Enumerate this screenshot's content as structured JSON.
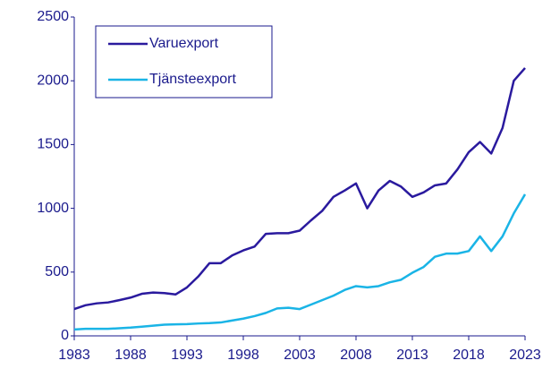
{
  "chart_data": {
    "type": "line",
    "x": [
      1983,
      1984,
      1985,
      1986,
      1987,
      1988,
      1989,
      1990,
      1991,
      1992,
      1993,
      1994,
      1995,
      1996,
      1997,
      1998,
      1999,
      2000,
      2001,
      2002,
      2003,
      2004,
      2005,
      2006,
      2007,
      2008,
      2009,
      2010,
      2011,
      2012,
      2013,
      2014,
      2015,
      2016,
      2017,
      2018,
      2019,
      2020,
      2021,
      2022,
      2023
    ],
    "series": [
      {
        "name": "Varuexport",
        "color": "#2a1a9e",
        "values": [
          210,
          240,
          255,
          262,
          280,
          300,
          330,
          340,
          335,
          325,
          380,
          465,
          570,
          570,
          630,
          670,
          700,
          800,
          805,
          805,
          825,
          905,
          980,
          1090,
          1140,
          1195,
          1000,
          1140,
          1215,
          1170,
          1090,
          1125,
          1180,
          1195,
          1305,
          1440,
          1520,
          1430,
          1630,
          2000,
          2100
        ]
      },
      {
        "name": "Tjänsteexport",
        "color": "#1ab4e6",
        "values": [
          50,
          55,
          55,
          55,
          60,
          65,
          72,
          80,
          88,
          90,
          92,
          97,
          100,
          105,
          120,
          135,
          155,
          180,
          215,
          220,
          210,
          245,
          280,
          315,
          360,
          390,
          380,
          390,
          420,
          440,
          495,
          540,
          620,
          645,
          645,
          665,
          780,
          665,
          780,
          960,
          1110
        ]
      }
    ],
    "xlim": [
      1983,
      2023
    ],
    "xticks": [
      1983,
      1988,
      1993,
      1998,
      2003,
      2008,
      2013,
      2018,
      2023
    ],
    "ylim": [
      0,
      2500
    ],
    "yticks": [
      0,
      500,
      1000,
      1500,
      2000,
      2500
    ],
    "legend": "upper left"
  }
}
